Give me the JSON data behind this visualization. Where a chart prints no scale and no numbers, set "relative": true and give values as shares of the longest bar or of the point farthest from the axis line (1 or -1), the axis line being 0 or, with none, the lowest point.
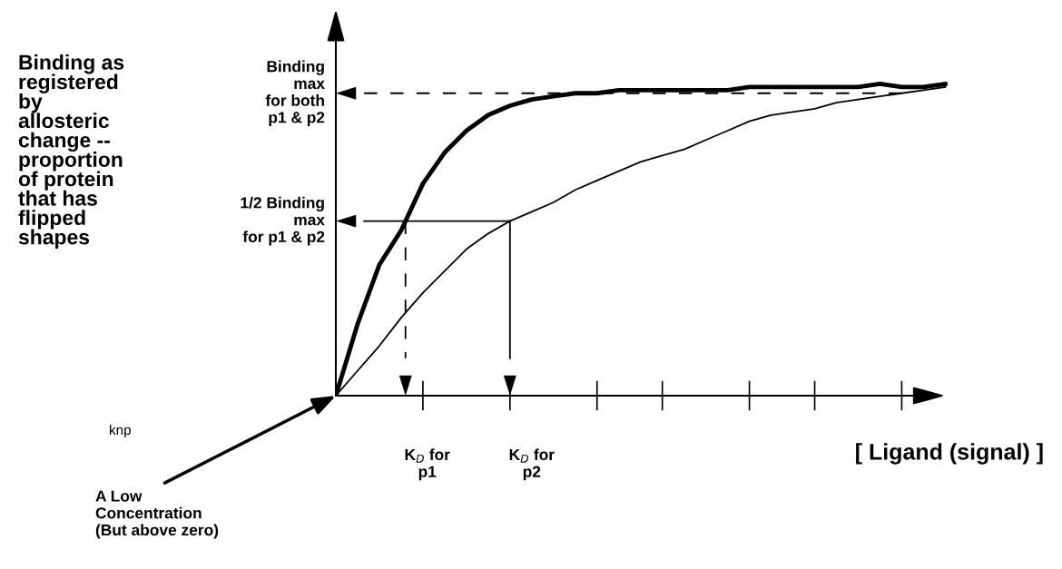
{
  "chart_data": {
    "type": "line",
    "relative": true,
    "ylabel": "Binding as\nregistered\nby\nallosteric\nchange --\nproportion\nof protein\nthat has\nflipped\nshapes",
    "xlabel": "[ Ligand (signal) ]",
    "categories": [
      null,
      null,
      null,
      null,
      null,
      null,
      null,
      null,
      null,
      null,
      null,
      null,
      null,
      null,
      null,
      null,
      null,
      null,
      null,
      null,
      null,
      null,
      null,
      null,
      null,
      null,
      null,
      null,
      null
    ],
    "grid": false,
    "marker": "none",
    "line_style": "solid",
    "series": [
      {
        "color": "#000000",
        "values": [
          0,
          0.23,
          0.42,
          0.53,
          0.68,
          0.78,
          0.85,
          0.9,
          0.93,
          0.95,
          0.96,
          0.97,
          0.97,
          0.98,
          0.98,
          0.98,
          0.98,
          0.98,
          0.98,
          0.99,
          0.99,
          0.99,
          0.99,
          0.99,
          0.99,
          1.0,
          0.99,
          0.99,
          1.0
        ]
      },
      {
        "color": "#000000",
        "values": [
          0,
          0.08,
          0.16,
          0.25,
          0.33,
          0.4,
          0.47,
          0.52,
          0.56,
          0.59,
          0.62,
          0.66,
          0.69,
          0.72,
          0.75,
          0.77,
          0.79,
          0.82,
          0.85,
          0.88,
          0.9,
          0.91,
          0.92,
          0.94,
          0.95,
          0.96,
          0.97,
          0.98,
          0.99
        ]
      }
    ],
    "ref_lines": [
      {
        "axis": "y",
        "value": 0.97,
        "label": "Binding\nmax\nfor both\np1 & p2",
        "line_style": "dashed"
      },
      {
        "axis": "y",
        "value": 0.56,
        "label": "1/2 Binding\nmax\nfor p1 & p2",
        "line_style": "solid"
      }
    ],
    "annotations": [
      "K$_{D}$ for\np1",
      "K$_{D}$ for\np2",
      "A Low\nConcentration\n(But above zero)",
      "knp"
    ]
  }
}
